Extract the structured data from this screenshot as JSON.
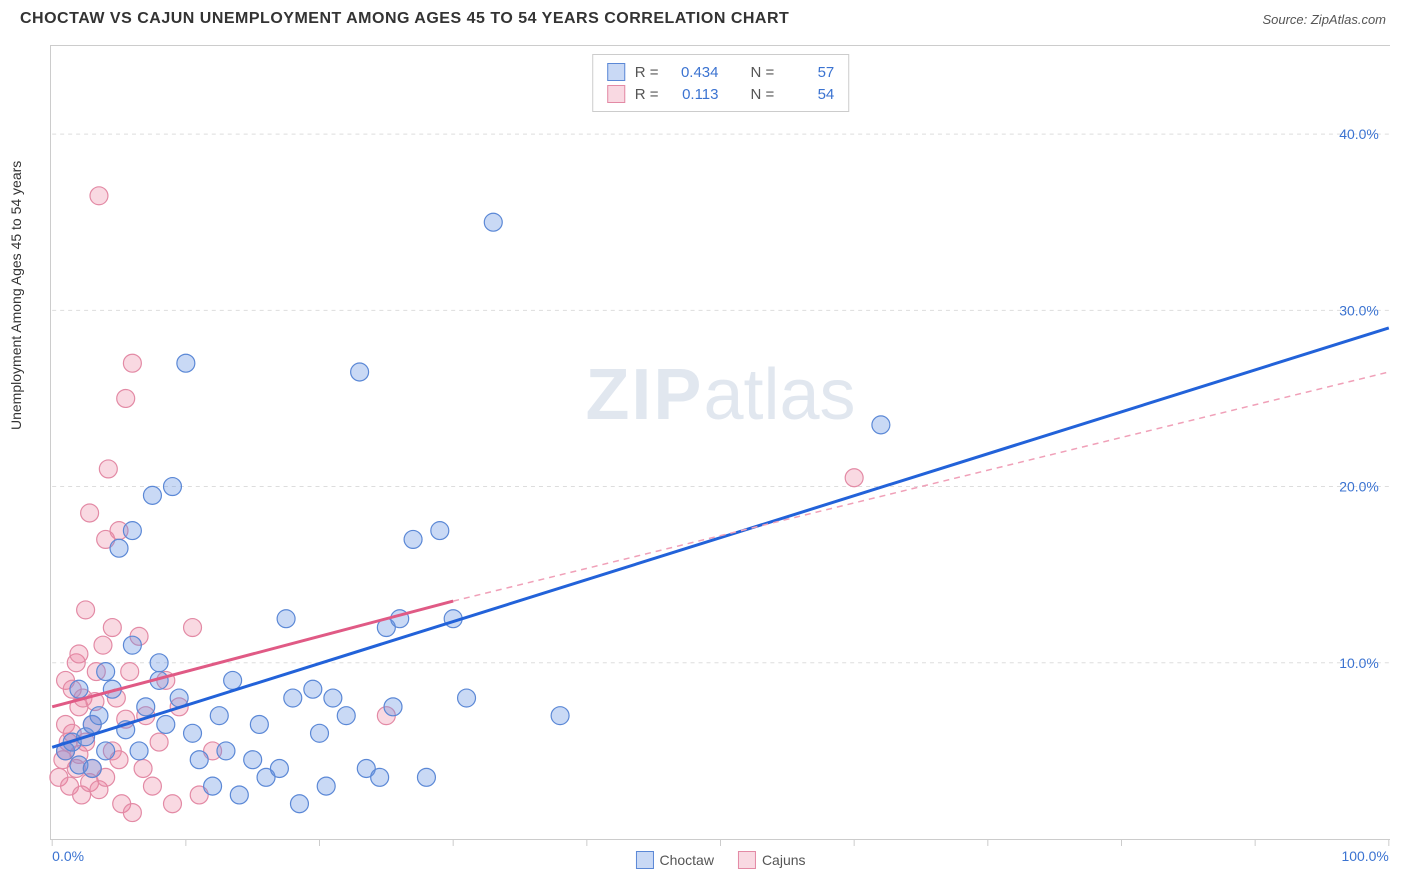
{
  "title": "CHOCTAW VS CAJUN UNEMPLOYMENT AMONG AGES 45 TO 54 YEARS CORRELATION CHART",
  "source_label": "Source: ZipAtlas.com",
  "y_axis_label": "Unemployment Among Ages 45 to 54 years",
  "watermark": {
    "part1": "ZIP",
    "part2": "atlas"
  },
  "chart": {
    "type": "scatter",
    "xlim": [
      0,
      100
    ],
    "ylim": [
      0,
      45
    ],
    "x_ticks": [
      0,
      10,
      20,
      30,
      40,
      50,
      60,
      70,
      80,
      90,
      100
    ],
    "x_tick_labels": {
      "0": "0.0%",
      "100": "100.0%"
    },
    "y_ticks": [
      10,
      20,
      30,
      40
    ],
    "y_tick_labels": {
      "10": "10.0%",
      "20": "20.0%",
      "30": "30.0%",
      "40": "40.0%"
    },
    "grid_color": "#dddddd",
    "axis_color": "#cccccc",
    "background_color": "#ffffff",
    "point_radius": 9,
    "series": [
      {
        "name": "Choctaw",
        "color_fill": "rgba(99,145,226,0.35)",
        "color_stroke": "#5b88d6",
        "trend": {
          "x1": 0,
          "y1": 5.2,
          "x2": 100,
          "y2": 29.0,
          "stroke": "#2262d9",
          "width": 3,
          "dash": "none"
        },
        "trend_ext": null,
        "points": [
          [
            1.0,
            5.0
          ],
          [
            1.5,
            5.5
          ],
          [
            2.0,
            4.2
          ],
          [
            2.5,
            5.8
          ],
          [
            3.0,
            6.5
          ],
          [
            3.0,
            4.0
          ],
          [
            3.5,
            7.0
          ],
          [
            4.0,
            5.0
          ],
          [
            4.5,
            8.5
          ],
          [
            5.0,
            16.5
          ],
          [
            5.5,
            6.2
          ],
          [
            6.0,
            17.5
          ],
          [
            6.5,
            5.0
          ],
          [
            7.0,
            7.5
          ],
          [
            7.5,
            19.5
          ],
          [
            8.0,
            9.0
          ],
          [
            8.5,
            6.5
          ],
          [
            9.0,
            20.0
          ],
          [
            9.5,
            8.0
          ],
          [
            10.0,
            27.0
          ],
          [
            10.5,
            6.0
          ],
          [
            11.0,
            4.5
          ],
          [
            12.0,
            3.0
          ],
          [
            12.5,
            7.0
          ],
          [
            13.0,
            5.0
          ],
          [
            13.5,
            9.0
          ],
          [
            14.0,
            2.5
          ],
          [
            15.0,
            4.5
          ],
          [
            15.5,
            6.5
          ],
          [
            16.0,
            3.5
          ],
          [
            17.0,
            4.0
          ],
          [
            17.5,
            12.5
          ],
          [
            18.0,
            8.0
          ],
          [
            18.5,
            2.0
          ],
          [
            19.5,
            8.5
          ],
          [
            20.0,
            6.0
          ],
          [
            20.5,
            3.0
          ],
          [
            21.0,
            8.0
          ],
          [
            22.0,
            7.0
          ],
          [
            23.0,
            26.5
          ],
          [
            23.5,
            4.0
          ],
          [
            24.5,
            3.5
          ],
          [
            25.0,
            12.0
          ],
          [
            25.5,
            7.5
          ],
          [
            26.0,
            12.5
          ],
          [
            27.0,
            17.0
          ],
          [
            28.0,
            3.5
          ],
          [
            29.0,
            17.5
          ],
          [
            30.0,
            12.5
          ],
          [
            31.0,
            8.0
          ],
          [
            33.0,
            35.0
          ],
          [
            38.0,
            7.0
          ],
          [
            62.0,
            23.5
          ],
          [
            2.0,
            8.5
          ],
          [
            4.0,
            9.5
          ],
          [
            6.0,
            11.0
          ],
          [
            8.0,
            10.0
          ]
        ]
      },
      {
        "name": "Cajuns",
        "color_fill": "rgba(235,130,160,0.30)",
        "color_stroke": "#e38aa5",
        "trend": {
          "x1": 0,
          "y1": 7.5,
          "x2": 30,
          "y2": 13.5,
          "stroke": "#e05a85",
          "width": 3,
          "dash": "none"
        },
        "trend_ext": {
          "x1": 30,
          "y1": 13.5,
          "x2": 100,
          "y2": 26.5,
          "stroke": "#f0a0b8",
          "width": 1.5,
          "dash": "6,5"
        },
        "points": [
          [
            0.5,
            3.5
          ],
          [
            0.8,
            4.5
          ],
          [
            1.0,
            5.0
          ],
          [
            1.0,
            9.0
          ],
          [
            1.2,
            5.5
          ],
          [
            1.3,
            3.0
          ],
          [
            1.5,
            6.0
          ],
          [
            1.5,
            8.5
          ],
          [
            1.8,
            4.0
          ],
          [
            1.8,
            10.0
          ],
          [
            2.0,
            4.8
          ],
          [
            2.0,
            7.5
          ],
          [
            2.2,
            2.5
          ],
          [
            2.3,
            8.0
          ],
          [
            2.5,
            5.5
          ],
          [
            2.5,
            13.0
          ],
          [
            2.8,
            3.2
          ],
          [
            2.8,
            18.5
          ],
          [
            3.0,
            6.5
          ],
          [
            3.0,
            4.0
          ],
          [
            3.2,
            7.8
          ],
          [
            3.3,
            9.5
          ],
          [
            3.5,
            2.8
          ],
          [
            3.5,
            36.5
          ],
          [
            3.8,
            11.0
          ],
          [
            4.0,
            3.5
          ],
          [
            4.0,
            17.0
          ],
          [
            4.2,
            21.0
          ],
          [
            4.5,
            5.0
          ],
          [
            4.5,
            12.0
          ],
          [
            4.8,
            8.0
          ],
          [
            5.0,
            4.5
          ],
          [
            5.0,
            17.5
          ],
          [
            5.2,
            2.0
          ],
          [
            5.5,
            6.8
          ],
          [
            5.5,
            25.0
          ],
          [
            5.8,
            9.5
          ],
          [
            6.0,
            1.5
          ],
          [
            6.0,
            27.0
          ],
          [
            6.5,
            11.5
          ],
          [
            6.8,
            4.0
          ],
          [
            7.0,
            7.0
          ],
          [
            7.5,
            3.0
          ],
          [
            8.0,
            5.5
          ],
          [
            8.5,
            9.0
          ],
          [
            9.0,
            2.0
          ],
          [
            9.5,
            7.5
          ],
          [
            10.5,
            12.0
          ],
          [
            11.0,
            2.5
          ],
          [
            12.0,
            5.0
          ],
          [
            25.0,
            7.0
          ],
          [
            60.0,
            20.5
          ],
          [
            1.0,
            6.5
          ],
          [
            2.0,
            10.5
          ]
        ]
      }
    ]
  },
  "stats": {
    "rows": [
      {
        "swatch_fill": "rgba(99,145,226,0.35)",
        "swatch_stroke": "#5b88d6",
        "r_label": "R =",
        "r_val": "0.434",
        "n_label": "N =",
        "n_val": "57"
      },
      {
        "swatch_fill": "rgba(235,130,160,0.30)",
        "swatch_stroke": "#e38aa5",
        "r_label": "R =",
        "r_val": "0.113",
        "n_label": "N =",
        "n_val": "54"
      }
    ]
  },
  "legend": {
    "items": [
      {
        "label": "Choctaw",
        "fill": "rgba(99,145,226,0.35)",
        "stroke": "#5b88d6"
      },
      {
        "label": "Cajuns",
        "fill": "rgba(235,130,160,0.30)",
        "stroke": "#e38aa5"
      }
    ]
  }
}
